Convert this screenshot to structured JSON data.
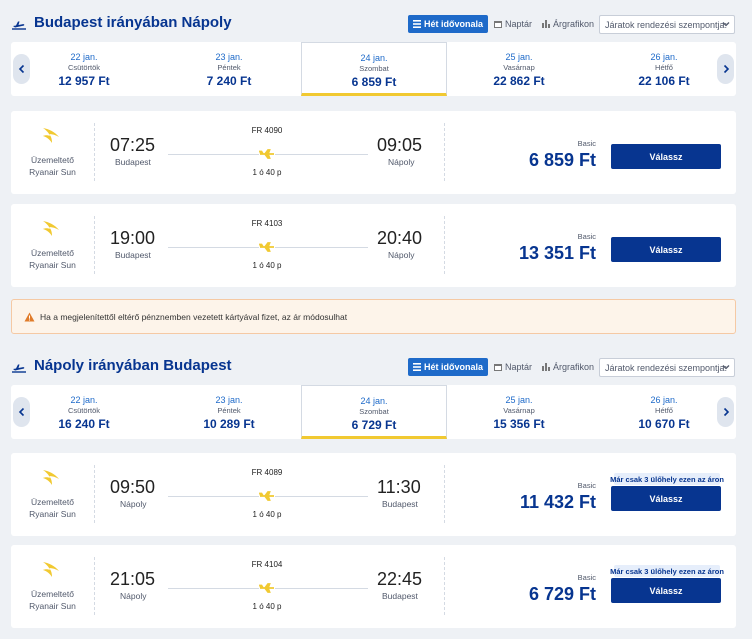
{
  "sections": [
    {
      "title": "Budapest irányában Nápoly",
      "view_toggles": [
        "Hét idővonala",
        "Naptár",
        "Árgrafikon"
      ],
      "active_toggle": "Hét idővonala",
      "sort_label": "Járatok rendezési szempontja:",
      "dates": [
        {
          "date": "22 jan.",
          "weekday": "Csütörtök",
          "price": "12 957 Ft"
        },
        {
          "date": "23 jan.",
          "weekday": "Péntek",
          "price": "7 240 Ft"
        },
        {
          "date": "24 jan.",
          "weekday": "Szombat",
          "price": "6 859 Ft",
          "selected": true
        },
        {
          "date": "25 jan.",
          "weekday": "Vasárnap",
          "price": "22 862 Ft"
        },
        {
          "date": "26 jan.",
          "weekday": "Hétfő",
          "price": "22 106 Ft"
        }
      ],
      "flights": [
        {
          "operator_label": "Üzemeltető",
          "operator": "Ryanair Sun",
          "depart_time": "07:25",
          "depart_city": "Budapest",
          "flight_no": "FR 4090",
          "duration": "1 ó 40 p",
          "arrive_time": "09:05",
          "arrive_city": "Nápoly",
          "fare_type": "Basic",
          "price": "6 859 Ft",
          "button": "Válassz"
        },
        {
          "operator_label": "Üzemeltető",
          "operator": "Ryanair Sun",
          "depart_time": "19:00",
          "depart_city": "Budapest",
          "flight_no": "FR 4103",
          "duration": "1 ó 40 p",
          "arrive_time": "20:40",
          "arrive_city": "Nápoly",
          "fare_type": "Basic",
          "price": "13 351 Ft",
          "button": "Válassz"
        }
      ]
    },
    {
      "title": "Nápoly irányában Budapest",
      "view_toggles": [
        "Hét idővonala",
        "Naptár",
        "Árgrafikon"
      ],
      "active_toggle": "Hét idővonala",
      "sort_label": "Járatok rendezési szempontja:",
      "dates": [
        {
          "date": "22 jan.",
          "weekday": "Csütörtök",
          "price": "16 240 Ft"
        },
        {
          "date": "23 jan.",
          "weekday": "Péntek",
          "price": "10 289 Ft"
        },
        {
          "date": "24 jan.",
          "weekday": "Szombat",
          "price": "6 729 Ft",
          "selected": true
        },
        {
          "date": "25 jan.",
          "weekday": "Vasárnap",
          "price": "15 356 Ft"
        },
        {
          "date": "26 jan.",
          "weekday": "Hétfő",
          "price": "10 670 Ft"
        }
      ],
      "flights": [
        {
          "operator_label": "Üzemeltető",
          "operator": "Ryanair Sun",
          "depart_time": "09:50",
          "depart_city": "Nápoly",
          "flight_no": "FR 4089",
          "duration": "1 ó 40 p",
          "arrive_time": "11:30",
          "arrive_city": "Budapest",
          "fare_type": "Basic",
          "price": "11 432 Ft",
          "button": "Válassz",
          "badge": "Már csak 3 ülőhely ezen az áron"
        },
        {
          "operator_label": "Üzemeltető",
          "operator": "Ryanair Sun",
          "depart_time": "21:05",
          "depart_city": "Nápoly",
          "flight_no": "FR 4104",
          "duration": "1 ó 40 p",
          "arrive_time": "22:45",
          "arrive_city": "Budapest",
          "fare_type": "Basic",
          "price": "6 729 Ft",
          "button": "Válassz",
          "badge": "Már csak 3 ülőhely ezen az áron"
        }
      ]
    }
  ],
  "notice": "Ha a megjelenítettől eltérő pénznemben vezetett kártyával fizet, az ár módosulhat",
  "icons": {
    "section": "plane-takeoff-icon",
    "route": "plane-icon",
    "operator": "ryanair-harp-logo",
    "warning": "warning-icon"
  },
  "colors": {
    "brand": "#073590",
    "accent": "#f1c931",
    "link": "#1e6ac9",
    "warning": "#e07b2a"
  }
}
